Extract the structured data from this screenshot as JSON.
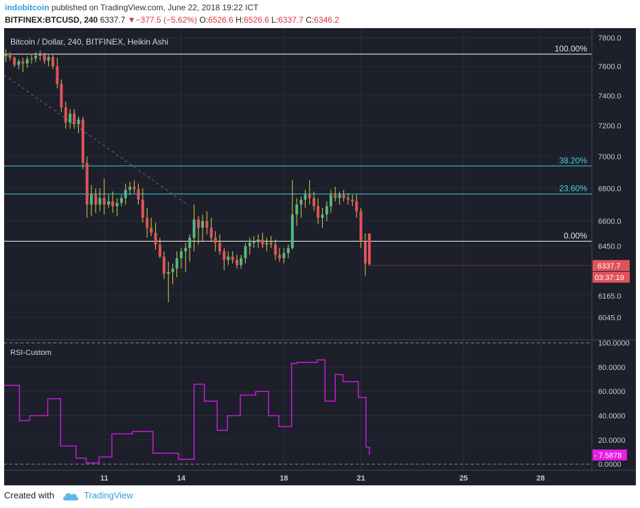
{
  "header": {
    "author": "indobitcoin",
    "published_text": "published on TradingView.com, June 22, 2018 19:22 ICT",
    "symbol": "BITFINEX:BTCUSD, 240",
    "last": "6337.7",
    "change": "−377.5 (−5.62%)",
    "o_label": "O:",
    "o_val": "6526.6",
    "h_label": "H:",
    "h_val": "6526.6",
    "l_label": "L:",
    "l_val": "6337.7",
    "c_label": "C:",
    "c_val": "6346.2"
  },
  "footer": {
    "created_with": "Created with",
    "brand": "TradingView"
  },
  "colors": {
    "background": "#1d1f2b",
    "up": "#54b789",
    "down": "#e0535b",
    "wick": "#d8d33c",
    "rsi": "#c21fd6",
    "fib_white": "#ffffff",
    "fib_cyan": "#3fd0d8",
    "fib_text_cyan": "#4ad3dc"
  },
  "chart_data": [
    {
      "type": "candlestick",
      "title": "Bitcoin / Dollar, 240, BITFINEX, Heikin Ashi",
      "y_scale": "log",
      "ylim": [
        5930,
        7850
      ],
      "y_ticks": [
        "7800.0",
        "7600.0",
        "7400.0",
        "7200.0",
        "7000.0",
        "6800.0",
        "6600.0",
        "6450.0",
        "6165.0",
        "6045.0"
      ],
      "x_range": [
        7.1,
        30.0
      ],
      "x_ticks": [
        {
          "x": 11,
          "label": "11"
        },
        {
          "x": 14,
          "label": "14"
        },
        {
          "x": 18,
          "label": "18"
        },
        {
          "x": 21,
          "label": "21"
        },
        {
          "x": 25,
          "label": "25"
        },
        {
          "x": 28,
          "label": "28"
        }
      ],
      "fib_levels": [
        {
          "label": "100.00%",
          "price": 7685,
          "color": "#ffffff"
        },
        {
          "label": "38.20%",
          "price": 6940,
          "color": "#3fd0d8"
        },
        {
          "label": "23.60%",
          "price": 6765,
          "color": "#3fd0d8"
        },
        {
          "label": "0.00%",
          "price": 6480,
          "color": "#ffffff"
        }
      ],
      "price_tag": {
        "value": "6337.7",
        "timer": "03:37:19"
      },
      "candles": [
        {
          "x": 7.17,
          "o": 7670,
          "h": 7720,
          "l": 7630,
          "c": 7690
        },
        {
          "x": 7.33,
          "o": 7690,
          "h": 7700,
          "l": 7640,
          "c": 7660
        },
        {
          "x": 7.5,
          "o": 7660,
          "h": 7670,
          "l": 7595,
          "c": 7610
        },
        {
          "x": 7.67,
          "o": 7610,
          "h": 7650,
          "l": 7580,
          "c": 7635
        },
        {
          "x": 7.83,
          "o": 7635,
          "h": 7660,
          "l": 7560,
          "c": 7620
        },
        {
          "x": 8.0,
          "o": 7620,
          "h": 7670,
          "l": 7590,
          "c": 7650
        },
        {
          "x": 8.17,
          "o": 7650,
          "h": 7680,
          "l": 7620,
          "c": 7655
        },
        {
          "x": 8.33,
          "o": 7655,
          "h": 7700,
          "l": 7630,
          "c": 7675
        },
        {
          "x": 8.5,
          "o": 7675,
          "h": 7710,
          "l": 7640,
          "c": 7685
        },
        {
          "x": 8.67,
          "o": 7685,
          "h": 7695,
          "l": 7620,
          "c": 7640
        },
        {
          "x": 8.83,
          "o": 7640,
          "h": 7680,
          "l": 7600,
          "c": 7665
        },
        {
          "x": 9.0,
          "o": 7665,
          "h": 7680,
          "l": 7580,
          "c": 7600
        },
        {
          "x": 9.17,
          "o": 7600,
          "h": 7660,
          "l": 7450,
          "c": 7480
        },
        {
          "x": 9.33,
          "o": 7480,
          "h": 7510,
          "l": 7290,
          "c": 7320
        },
        {
          "x": 9.5,
          "o": 7320,
          "h": 7360,
          "l": 7180,
          "c": 7220
        },
        {
          "x": 9.67,
          "o": 7220,
          "h": 7310,
          "l": 7180,
          "c": 7280
        },
        {
          "x": 9.83,
          "o": 7280,
          "h": 7310,
          "l": 7180,
          "c": 7210
        },
        {
          "x": 10.0,
          "o": 7210,
          "h": 7260,
          "l": 7150,
          "c": 7240
        },
        {
          "x": 10.17,
          "o": 7240,
          "h": 7260,
          "l": 6920,
          "c": 6960
        },
        {
          "x": 10.33,
          "o": 6960,
          "h": 7000,
          "l": 6620,
          "c": 6700
        },
        {
          "x": 10.5,
          "o": 6700,
          "h": 6820,
          "l": 6630,
          "c": 6760
        },
        {
          "x": 10.67,
          "o": 6760,
          "h": 6800,
          "l": 6650,
          "c": 6700
        },
        {
          "x": 10.83,
          "o": 6700,
          "h": 6800,
          "l": 6660,
          "c": 6740
        },
        {
          "x": 11.0,
          "o": 6740,
          "h": 6860,
          "l": 6640,
          "c": 6700
        },
        {
          "x": 11.17,
          "o": 6700,
          "h": 6760,
          "l": 6680,
          "c": 6720
        },
        {
          "x": 11.33,
          "o": 6720,
          "h": 6780,
          "l": 6650,
          "c": 6690
        },
        {
          "x": 11.5,
          "o": 6690,
          "h": 6740,
          "l": 6630,
          "c": 6710
        },
        {
          "x": 11.67,
          "o": 6710,
          "h": 6760,
          "l": 6690,
          "c": 6740
        },
        {
          "x": 11.83,
          "o": 6740,
          "h": 6830,
          "l": 6700,
          "c": 6790
        },
        {
          "x": 12.0,
          "o": 6790,
          "h": 6840,
          "l": 6760,
          "c": 6810
        },
        {
          "x": 12.17,
          "o": 6810,
          "h": 6850,
          "l": 6770,
          "c": 6795
        },
        {
          "x": 12.33,
          "o": 6795,
          "h": 6830,
          "l": 6700,
          "c": 6730
        },
        {
          "x": 12.5,
          "o": 6730,
          "h": 6800,
          "l": 6590,
          "c": 6620
        },
        {
          "x": 12.67,
          "o": 6620,
          "h": 6680,
          "l": 6500,
          "c": 6560
        },
        {
          "x": 12.83,
          "o": 6560,
          "h": 6620,
          "l": 6510,
          "c": 6530
        },
        {
          "x": 13.0,
          "o": 6530,
          "h": 6590,
          "l": 6430,
          "c": 6460
        },
        {
          "x": 13.17,
          "o": 6460,
          "h": 6500,
          "l": 6380,
          "c": 6390
        },
        {
          "x": 13.33,
          "o": 6390,
          "h": 6420,
          "l": 6260,
          "c": 6290
        },
        {
          "x": 13.5,
          "o": 6290,
          "h": 6360,
          "l": 6130,
          "c": 6300
        },
        {
          "x": 13.67,
          "o": 6300,
          "h": 6350,
          "l": 6230,
          "c": 6320
        },
        {
          "x": 13.83,
          "o": 6320,
          "h": 6420,
          "l": 6270,
          "c": 6380
        },
        {
          "x": 14.0,
          "o": 6380,
          "h": 6440,
          "l": 6320,
          "c": 6420
        },
        {
          "x": 14.17,
          "o": 6420,
          "h": 6470,
          "l": 6300,
          "c": 6440
        },
        {
          "x": 14.33,
          "o": 6440,
          "h": 6520,
          "l": 6360,
          "c": 6500
        },
        {
          "x": 14.5,
          "o": 6500,
          "h": 6700,
          "l": 6420,
          "c": 6610
        },
        {
          "x": 14.67,
          "o": 6610,
          "h": 6630,
          "l": 6460,
          "c": 6560
        },
        {
          "x": 14.83,
          "o": 6560,
          "h": 6640,
          "l": 6480,
          "c": 6600
        },
        {
          "x": 15.0,
          "o": 6600,
          "h": 6660,
          "l": 6520,
          "c": 6560
        },
        {
          "x": 15.17,
          "o": 6560,
          "h": 6620,
          "l": 6480,
          "c": 6500
        },
        {
          "x": 15.33,
          "o": 6500,
          "h": 6540,
          "l": 6420,
          "c": 6470
        },
        {
          "x": 15.5,
          "o": 6470,
          "h": 6520,
          "l": 6400,
          "c": 6420
        },
        {
          "x": 15.67,
          "o": 6420,
          "h": 6440,
          "l": 6310,
          "c": 6370
        },
        {
          "x": 15.83,
          "o": 6370,
          "h": 6420,
          "l": 6340,
          "c": 6390
        },
        {
          "x": 16.0,
          "o": 6390,
          "h": 6420,
          "l": 6350,
          "c": 6370
        },
        {
          "x": 16.17,
          "o": 6370,
          "h": 6400,
          "l": 6320,
          "c": 6340
        },
        {
          "x": 16.33,
          "o": 6340,
          "h": 6400,
          "l": 6320,
          "c": 6380
        },
        {
          "x": 16.5,
          "o": 6380,
          "h": 6470,
          "l": 6350,
          "c": 6450
        },
        {
          "x": 16.67,
          "o": 6450,
          "h": 6500,
          "l": 6400,
          "c": 6470
        },
        {
          "x": 16.83,
          "o": 6470,
          "h": 6510,
          "l": 6440,
          "c": 6480
        },
        {
          "x": 17.0,
          "o": 6480,
          "h": 6520,
          "l": 6440,
          "c": 6490
        },
        {
          "x": 17.17,
          "o": 6490,
          "h": 6530,
          "l": 6440,
          "c": 6460
        },
        {
          "x": 17.33,
          "o": 6460,
          "h": 6500,
          "l": 6420,
          "c": 6470
        },
        {
          "x": 17.5,
          "o": 6470,
          "h": 6510,
          "l": 6440,
          "c": 6460
        },
        {
          "x": 17.67,
          "o": 6460,
          "h": 6490,
          "l": 6370,
          "c": 6400
        },
        {
          "x": 17.83,
          "o": 6400,
          "h": 6440,
          "l": 6360,
          "c": 6380
        },
        {
          "x": 18.0,
          "o": 6380,
          "h": 6440,
          "l": 6350,
          "c": 6410
        },
        {
          "x": 18.17,
          "o": 6410,
          "h": 6460,
          "l": 6380,
          "c": 6440
        },
        {
          "x": 18.33,
          "o": 6440,
          "h": 6850,
          "l": 6430,
          "c": 6640
        },
        {
          "x": 18.5,
          "o": 6640,
          "h": 6740,
          "l": 6570,
          "c": 6700
        },
        {
          "x": 18.67,
          "o": 6700,
          "h": 6750,
          "l": 6620,
          "c": 6730
        },
        {
          "x": 18.83,
          "o": 6730,
          "h": 6790,
          "l": 6680,
          "c": 6760
        },
        {
          "x": 19.0,
          "o": 6760,
          "h": 6850,
          "l": 6700,
          "c": 6740
        },
        {
          "x": 19.17,
          "o": 6740,
          "h": 6780,
          "l": 6660,
          "c": 6690
        },
        {
          "x": 19.33,
          "o": 6690,
          "h": 6740,
          "l": 6580,
          "c": 6620
        },
        {
          "x": 19.5,
          "o": 6620,
          "h": 6680,
          "l": 6560,
          "c": 6640
        },
        {
          "x": 19.67,
          "o": 6640,
          "h": 6720,
          "l": 6600,
          "c": 6690
        },
        {
          "x": 19.83,
          "o": 6690,
          "h": 6790,
          "l": 6650,
          "c": 6760
        },
        {
          "x": 20.0,
          "o": 6760,
          "h": 6810,
          "l": 6720,
          "c": 6740
        },
        {
          "x": 20.17,
          "o": 6740,
          "h": 6780,
          "l": 6700,
          "c": 6760
        },
        {
          "x": 20.33,
          "o": 6760,
          "h": 6790,
          "l": 6720,
          "c": 6740
        },
        {
          "x": 20.5,
          "o": 6740,
          "h": 6770,
          "l": 6700,
          "c": 6730
        },
        {
          "x": 20.67,
          "o": 6730,
          "h": 6760,
          "l": 6690,
          "c": 6720
        },
        {
          "x": 20.83,
          "o": 6720,
          "h": 6760,
          "l": 6620,
          "c": 6660
        },
        {
          "x": 21.0,
          "o": 6660,
          "h": 6680,
          "l": 6440,
          "c": 6480
        },
        {
          "x": 21.17,
          "o": 6480,
          "h": 6526,
          "l": 6280,
          "c": 6350
        },
        {
          "x": 21.33,
          "o": 6526,
          "h": 6526,
          "l": 6337,
          "c": 6346
        }
      ]
    },
    {
      "type": "line",
      "title": "RSI-Custom",
      "ylim": [
        -5,
        102
      ],
      "y_ticks": [
        "100.0000",
        "80.0000",
        "60.0000",
        "40.0000",
        "20.0000",
        "0.0000"
      ],
      "dashed_levels": [
        100,
        0
      ],
      "current_value": "7.5878",
      "series": [
        {
          "name": "RSI-Custom",
          "x": [
            7.1,
            7.7,
            8.1,
            8.8,
            9.3,
            9.9,
            10.3,
            10.8,
            11.3,
            12.1,
            12.9,
            13.5,
            13.9,
            14.5,
            14.9,
            15.4,
            15.8,
            16.3,
            16.9,
            17.4,
            17.8,
            18.3,
            18.5,
            19.3,
            19.6,
            20.0,
            20.3,
            20.6,
            20.9,
            21.2,
            21.33
          ],
          "y": [
            65,
            36,
            40,
            54,
            15,
            5,
            1,
            6,
            25,
            27,
            9,
            9,
            4,
            66,
            52,
            28,
            40,
            57,
            60,
            40,
            31,
            83,
            84,
            86,
            52,
            74,
            68,
            68,
            55,
            14,
            7.6
          ]
        }
      ]
    }
  ]
}
